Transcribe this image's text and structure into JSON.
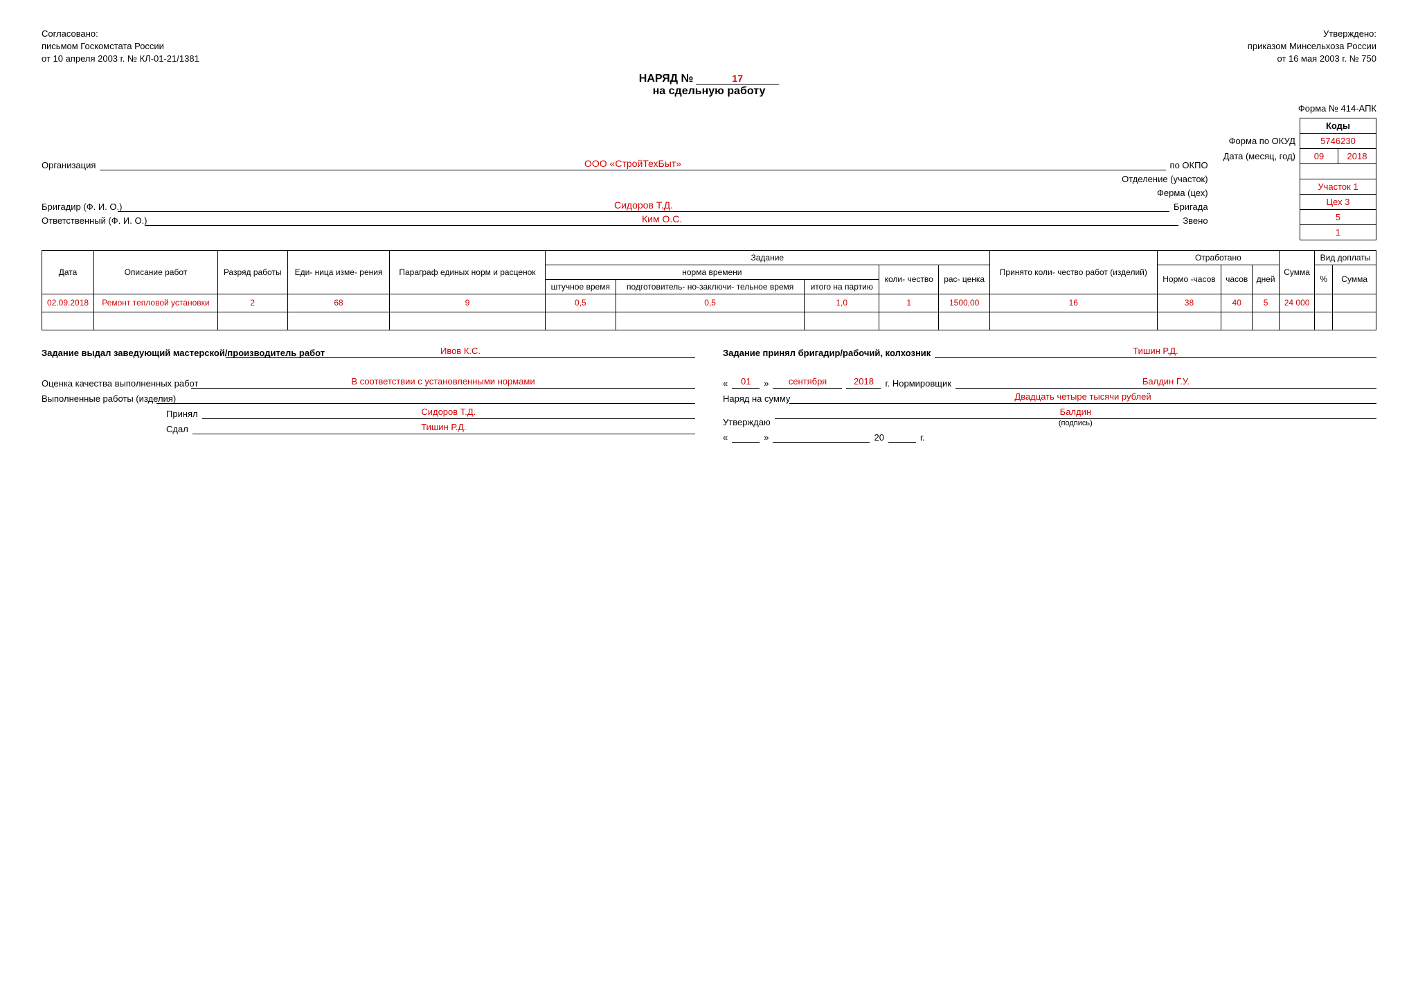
{
  "approval_left": {
    "l1": "Согласовано:",
    "l2": "письмом Госкомстата России",
    "l3": "от 10 апреля 2003 г. № КЛ-01-21/1381"
  },
  "approval_right": {
    "l1": "Утверждено:",
    "l2": "приказом Минсельхоза России",
    "l3": "от 16 мая 2003 г. № 750"
  },
  "title": {
    "prefix": "НАРЯД №",
    "number": "17",
    "sub": "на сдельную работу"
  },
  "form_no": "Форма № 414-АПК",
  "codes": {
    "header": "Коды",
    "rows": {
      "okud_label": "Форма по ОКУД",
      "okud": "5746230",
      "date_label": "Дата (месяц, год)",
      "date_m": "09",
      "date_y": "2018",
      "okpo_label": "по ОКПО",
      "okpo": "",
      "otdel_label": "Отделение (участок)",
      "otdel": "Участок 1",
      "ferma_label": "Ферма (цех)",
      "ferma": "Цех 3",
      "brigada_label": "Бригада",
      "brigada": "5",
      "zveno_label": "Звено",
      "zveno": "1"
    }
  },
  "org": {
    "label": "Организация",
    "value": "ООО «СтройТехБыт»"
  },
  "brigadir": {
    "label": "Бригадир (Ф. И. О.)",
    "value": "Сидоров Т.Д."
  },
  "resp": {
    "label": "Ответственный (Ф. И. О.)",
    "value": "Ким О.С."
  },
  "table": {
    "headers": {
      "date": "Дата",
      "desc": "Описание работ",
      "grade": "Разряд работы",
      "unit": "Еди-\nница изме-\nрения",
      "para": "Параграф единых норм и расценок",
      "task": "Задание",
      "norm": "норма времени",
      "piece": "штучное время",
      "prep": "подготовитель-\nно-заключи-\nтельное время",
      "batch": "итого на партию",
      "qty": "коли-\nчество",
      "rate": "рас-\nценка",
      "accepted": "Принято коли-\nчество работ (изделий)",
      "worked": "Отработано",
      "normhrs": "Нормо\n-часов",
      "hours": "часов",
      "days": "дней",
      "sum": "Сумма",
      "extra": "Вид доплаты",
      "pct": "%",
      "esum": "Сумма"
    },
    "rows": [
      {
        "date": "02.09.2018",
        "desc": "Ремонт тепловой установки",
        "grade": "2",
        "unit": "68",
        "para": "9",
        "piece": "0,5",
        "prep": "0,5",
        "batch": "1,0",
        "qty": "1",
        "rate": "1500,00",
        "accepted": "16",
        "normhrs": "38",
        "hours": "40",
        "days": "5",
        "sum": "24 000",
        "pct": "",
        "esum": ""
      }
    ]
  },
  "sig": {
    "issued_label": "Задание выдал заведующий мастерской/производитель работ",
    "issued_val": "Ивов К.С.",
    "accepted_label": "Задание принял бригадир/рабочий, колхозник",
    "accepted_val": "Тишин Р.Д.",
    "quality_label": "Оценка качества выполненных работ",
    "quality_val": "В соответствии с установленными нормами",
    "done_label": "Выполненные работы (изделия)",
    "done_val": "",
    "prinial_label": "Принял",
    "prinial_val": "Сидоров Т.Д.",
    "sdal_label": "Сдал",
    "sdal_val": "Тишин Р.Д.",
    "date_d": "01",
    "date_m": "сентября",
    "date_y": "2018",
    "norm_label": "г. Нормировщик",
    "norm_val": "Балдин Г.У.",
    "order_sum_label": "Наряд на сумму",
    "order_sum_val": "Двадцать четыре тысячи рублей",
    "approve_label": "Утверждаю",
    "approve_val": "Балдин",
    "approve_caption": "(подпись)",
    "empty_date1": "«",
    "empty_date2": "»",
    "empty_year_suffix": "20",
    "empty_g": "г."
  }
}
